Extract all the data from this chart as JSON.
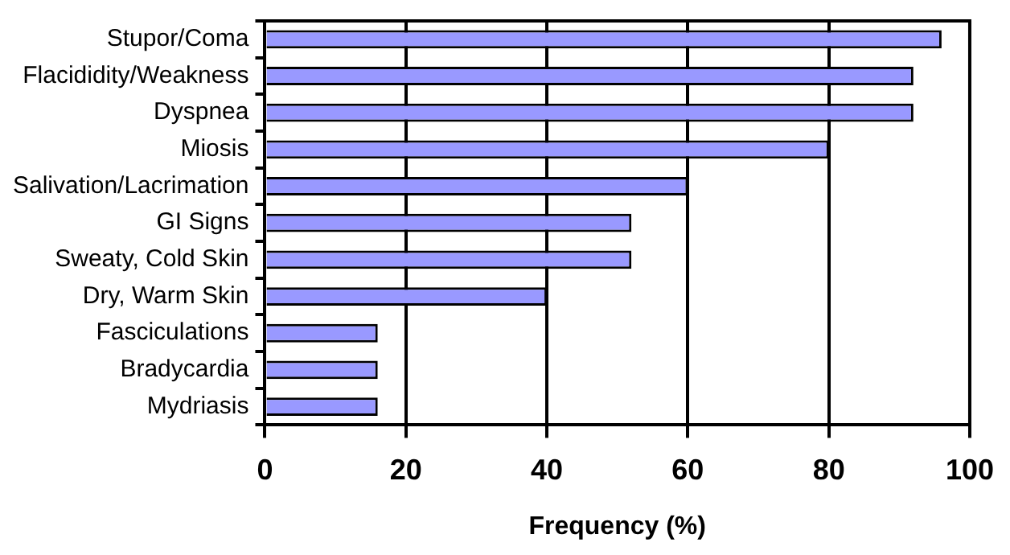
{
  "chart_data": {
    "type": "bar",
    "orientation": "horizontal",
    "xlabel": "Frequency (%)",
    "categories": [
      "Stupor/Coma",
      "Flacididity/Weakness",
      "Dyspnea",
      "Miosis",
      "Salivation/Lacrimation",
      "GI Signs",
      "Sweaty, Cold Skin",
      "Dry, Warm Skin",
      "Fasciculations",
      "Bradycardia",
      "Mydriasis"
    ],
    "values": [
      96,
      92,
      92,
      80,
      60,
      52,
      52,
      40,
      16,
      16,
      16
    ],
    "color": "#9999ff",
    "xlim": [
      0,
      100
    ],
    "xticks": [
      0,
      20,
      40,
      60,
      80,
      100
    ],
    "grid": "x",
    "legend": false
  }
}
